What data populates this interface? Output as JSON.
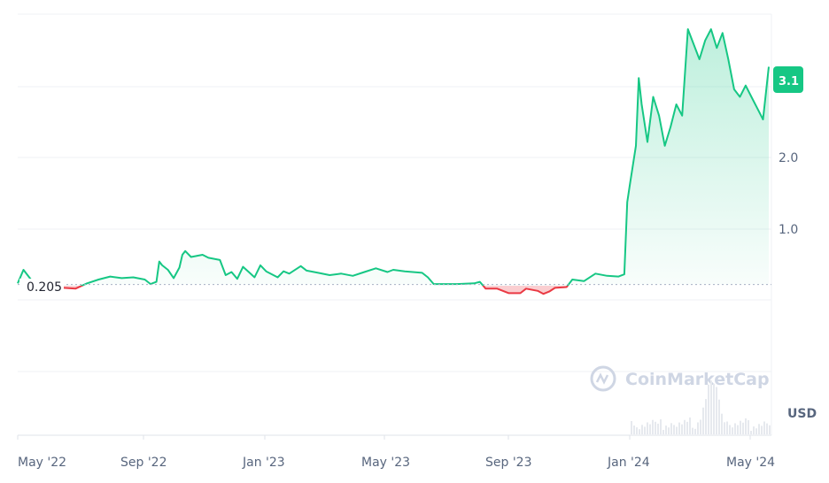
{
  "chart_data": {
    "type": "area",
    "watermark": "CoinMarketCap",
    "currency": "USD",
    "reference_label": "0.205",
    "reference_value": 0.205,
    "current_price_label": "3.1",
    "y_ticks": [
      "1.0",
      "2.0",
      "3.1"
    ],
    "x_ticks": [
      "May '22",
      "Sep '22",
      "Jan '23",
      "May '23",
      "Sep '23",
      "Jan '24",
      "May '24"
    ],
    "ylim": [
      -1.8,
      3.8
    ],
    "colors": {
      "up": "#16c784",
      "down": "#ea3943",
      "badge": "#16c784"
    },
    "series": [
      {
        "values": [
          [
            0,
            0.22
          ],
          [
            1,
            0.4
          ],
          [
            3,
            0.2
          ],
          [
            8,
            0.16
          ],
          [
            10,
            0.15
          ],
          [
            12,
            0.22
          ],
          [
            14,
            0.27
          ],
          [
            16,
            0.31
          ],
          [
            18,
            0.29
          ],
          [
            20,
            0.3
          ],
          [
            22,
            0.27
          ],
          [
            23,
            0.21
          ],
          [
            24,
            0.24
          ],
          [
            24.5,
            0.51
          ],
          [
            25,
            0.46
          ],
          [
            26,
            0.4
          ],
          [
            27,
            0.29
          ],
          [
            28,
            0.43
          ],
          [
            28.5,
            0.6
          ],
          [
            29,
            0.65
          ],
          [
            30,
            0.57
          ],
          [
            32,
            0.6
          ],
          [
            33,
            0.56
          ],
          [
            35,
            0.53
          ],
          [
            36,
            0.33
          ],
          [
            37,
            0.37
          ],
          [
            38,
            0.28
          ],
          [
            39,
            0.44
          ],
          [
            40,
            0.37
          ],
          [
            41,
            0.3
          ],
          [
            42,
            0.46
          ],
          [
            43,
            0.38
          ],
          [
            45,
            0.3
          ],
          [
            46,
            0.38
          ],
          [
            47,
            0.35
          ],
          [
            49,
            0.45
          ],
          [
            50,
            0.39
          ],
          [
            52,
            0.36
          ],
          [
            54,
            0.33
          ],
          [
            56,
            0.35
          ],
          [
            58,
            0.32
          ],
          [
            60,
            0.37
          ],
          [
            62,
            0.42
          ],
          [
            64,
            0.37
          ],
          [
            65,
            0.4
          ],
          [
            67,
            0.38
          ],
          [
            70,
            0.36
          ],
          [
            71,
            0.3
          ],
          [
            72,
            0.21
          ],
          [
            74,
            0.21
          ],
          [
            76,
            0.21
          ],
          [
            79,
            0.22
          ],
          [
            80,
            0.24
          ],
          [
            81,
            0.15
          ],
          [
            83,
            0.15
          ],
          [
            85,
            0.09
          ],
          [
            87,
            0.09
          ],
          [
            88,
            0.15
          ],
          [
            90,
            0.12
          ],
          [
            91,
            0.08
          ],
          [
            92,
            0.11
          ],
          [
            93,
            0.16
          ],
          [
            95,
            0.17
          ],
          [
            96,
            0.27
          ],
          [
            98,
            0.25
          ],
          [
            100,
            0.35
          ],
          [
            102,
            0.32
          ],
          [
            104,
            0.31
          ],
          [
            105,
            0.34
          ],
          [
            105.5,
            1.3
          ],
          [
            106,
            1.55
          ],
          [
            107,
            2.05
          ],
          [
            107.5,
            2.95
          ],
          [
            108,
            2.6
          ],
          [
            109,
            2.1
          ],
          [
            110,
            2.7
          ],
          [
            111,
            2.45
          ],
          [
            112,
            2.05
          ],
          [
            113,
            2.3
          ],
          [
            114,
            2.6
          ],
          [
            115,
            2.45
          ],
          [
            116,
            3.6
          ],
          [
            117,
            3.4
          ],
          [
            118,
            3.2
          ],
          [
            119,
            3.45
          ],
          [
            120,
            3.6
          ],
          [
            121,
            3.35
          ],
          [
            122,
            3.55
          ],
          [
            123,
            3.2
          ],
          [
            124,
            2.8
          ],
          [
            125,
            2.7
          ],
          [
            126,
            2.85
          ],
          [
            127,
            2.7
          ],
          [
            128,
            2.55
          ],
          [
            129,
            2.4
          ],
          [
            130,
            3.1
          ]
        ]
      }
    ]
  }
}
